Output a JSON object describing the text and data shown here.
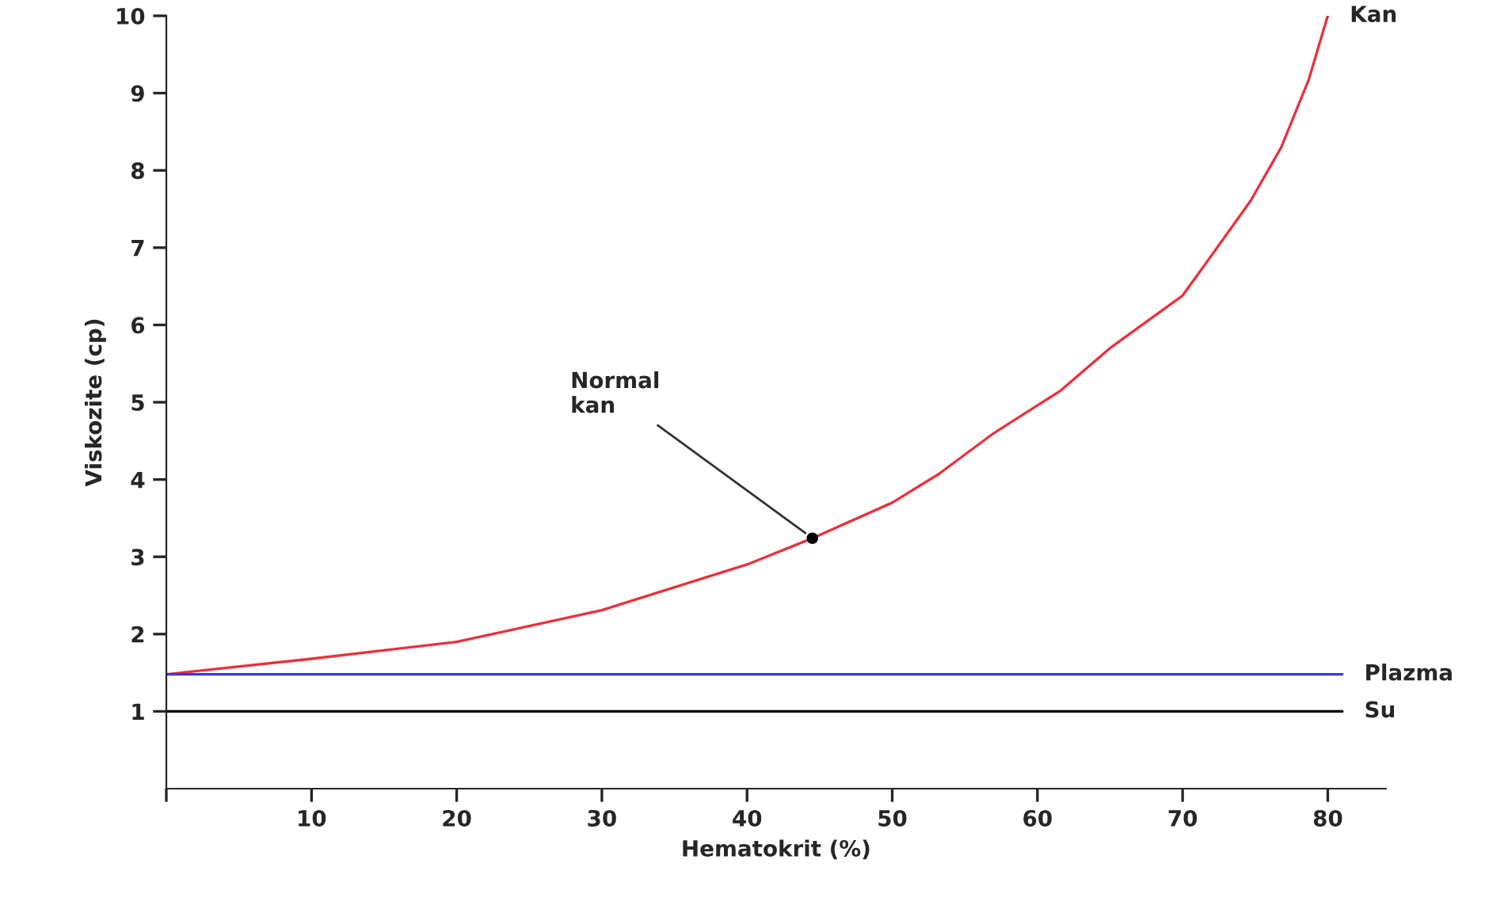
{
  "chart_data": {
    "type": "line",
    "xlabel": "Hematokrit (%)",
    "ylabel": "Viskozite (cp)",
    "xlim": [
      0,
      84
    ],
    "ylim": [
      0,
      10
    ],
    "xticks": [
      {
        "value": 0,
        "label": null
      },
      10,
      20,
      30,
      40,
      50,
      60,
      70,
      80
    ],
    "yticks": [
      1,
      2,
      3,
      4,
      5,
      6,
      7,
      8,
      9,
      10
    ],
    "grid": false,
    "legend": false,
    "marker": "none",
    "line_style": "solid",
    "series": [
      {
        "name": "Kan",
        "color": "#e8323c",
        "x": [
          0,
          10,
          20,
          30,
          40,
          44.5,
          50,
          53.2,
          57,
          61.6,
          65,
          70,
          72,
          74.7,
          76.8,
          78.7,
          80
        ],
        "values": [
          1.48,
          1.68,
          1.9,
          2.31,
          2.9,
          3.24,
          3.7,
          4.07,
          4.6,
          5.15,
          5.7,
          6.38,
          6.9,
          7.61,
          8.3,
          9.18,
          10
        ]
      },
      {
        "name": "Plazma",
        "color": "#3a3ad0",
        "x": [
          0,
          81
        ],
        "values": [
          1.48,
          1.48
        ]
      },
      {
        "name": "Su",
        "color": "#000000",
        "x": [
          0,
          81
        ],
        "values": [
          1,
          1
        ]
      },
      {
        "type": "scatter",
        "color": "#000000",
        "x": [
          44.5
        ],
        "values": [
          3.24
        ],
        "marker": "circle"
      }
    ],
    "annotations": [
      {
        "text": "Normal\nkan",
        "x": 44.5,
        "y": 3.24
      }
    ]
  }
}
